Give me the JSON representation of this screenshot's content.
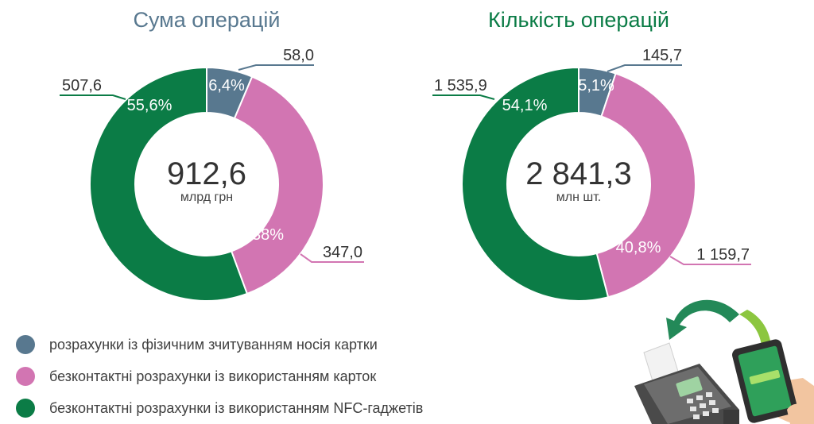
{
  "colors": {
    "card": "#58788f",
    "contactless_card": "#d275b2",
    "nfc": "#0b7c46",
    "title_left": "#58788f",
    "title_right": "#0b7c46",
    "center_text": "#333333"
  },
  "legend": [
    {
      "label": "розрахунки із фізичним зчитуванням носія картки",
      "color": "#58788f"
    },
    {
      "label": "безконтактні розрахунки із використанням карток",
      "color": "#d275b2"
    },
    {
      "label": "безконтактні розрахунки із використанням NFC-гаджетів",
      "color": "#0b7c46"
    }
  ],
  "chart_data": [
    {
      "type": "pie",
      "title": "Сума операцій",
      "total": "912,6",
      "unit": "млрд грн",
      "slices": [
        {
          "value": 58.0,
          "value_label": "58,0",
          "percent_label": "6,4%"
        },
        {
          "value": 347.0,
          "value_label": "347,0",
          "percent_label": "38%"
        },
        {
          "value": 507.6,
          "value_label": "507,6",
          "percent_label": "55,6%"
        }
      ]
    },
    {
      "type": "pie",
      "title": "Кількість операцій",
      "total": "2 841,3",
      "unit": "млн шт.",
      "slices": [
        {
          "value": 145.7,
          "value_label": "145,7",
          "percent_label": "5,1%"
        },
        {
          "value": 1159.7,
          "value_label": "1 159,7",
          "percent_label": "40,8%"
        },
        {
          "value": 1535.9,
          "value_label": "1 535,9",
          "percent_label": "54,1%"
        }
      ]
    }
  ]
}
